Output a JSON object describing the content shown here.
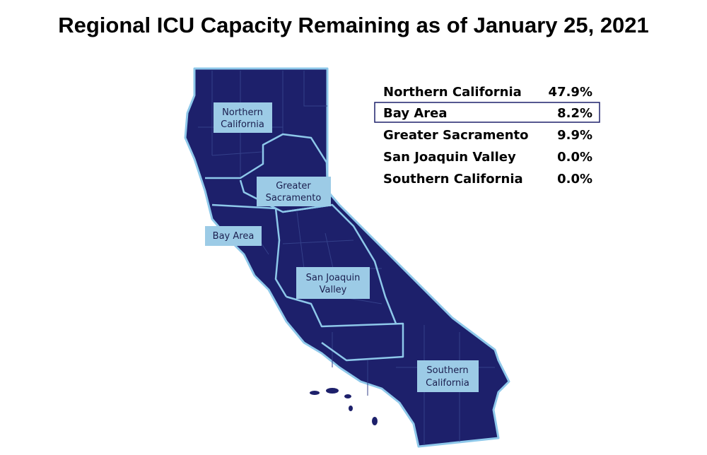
{
  "title": "Regional ICU Capacity Remaining as of January 25, 2021",
  "map_labels": [
    {
      "lines": [
        "Northern",
        "California"
      ]
    },
    {
      "lines": [
        "Greater",
        "Sacramento"
      ]
    },
    {
      "lines": [
        "Bay Area"
      ]
    },
    {
      "lines": [
        "San Joaquin",
        "Valley"
      ]
    },
    {
      "lines": [
        "Southern",
        "California"
      ]
    }
  ],
  "table": {
    "rows": [
      [
        "Northern California",
        "47.9%"
      ],
      [
        "Bay Area",
        "8.2%"
      ],
      [
        "Greater Sacramento",
        "9.9%"
      ],
      [
        "San Joaquin Valley",
        "0.0%"
      ],
      [
        "Southern California",
        "0.0%"
      ]
    ]
  }
}
